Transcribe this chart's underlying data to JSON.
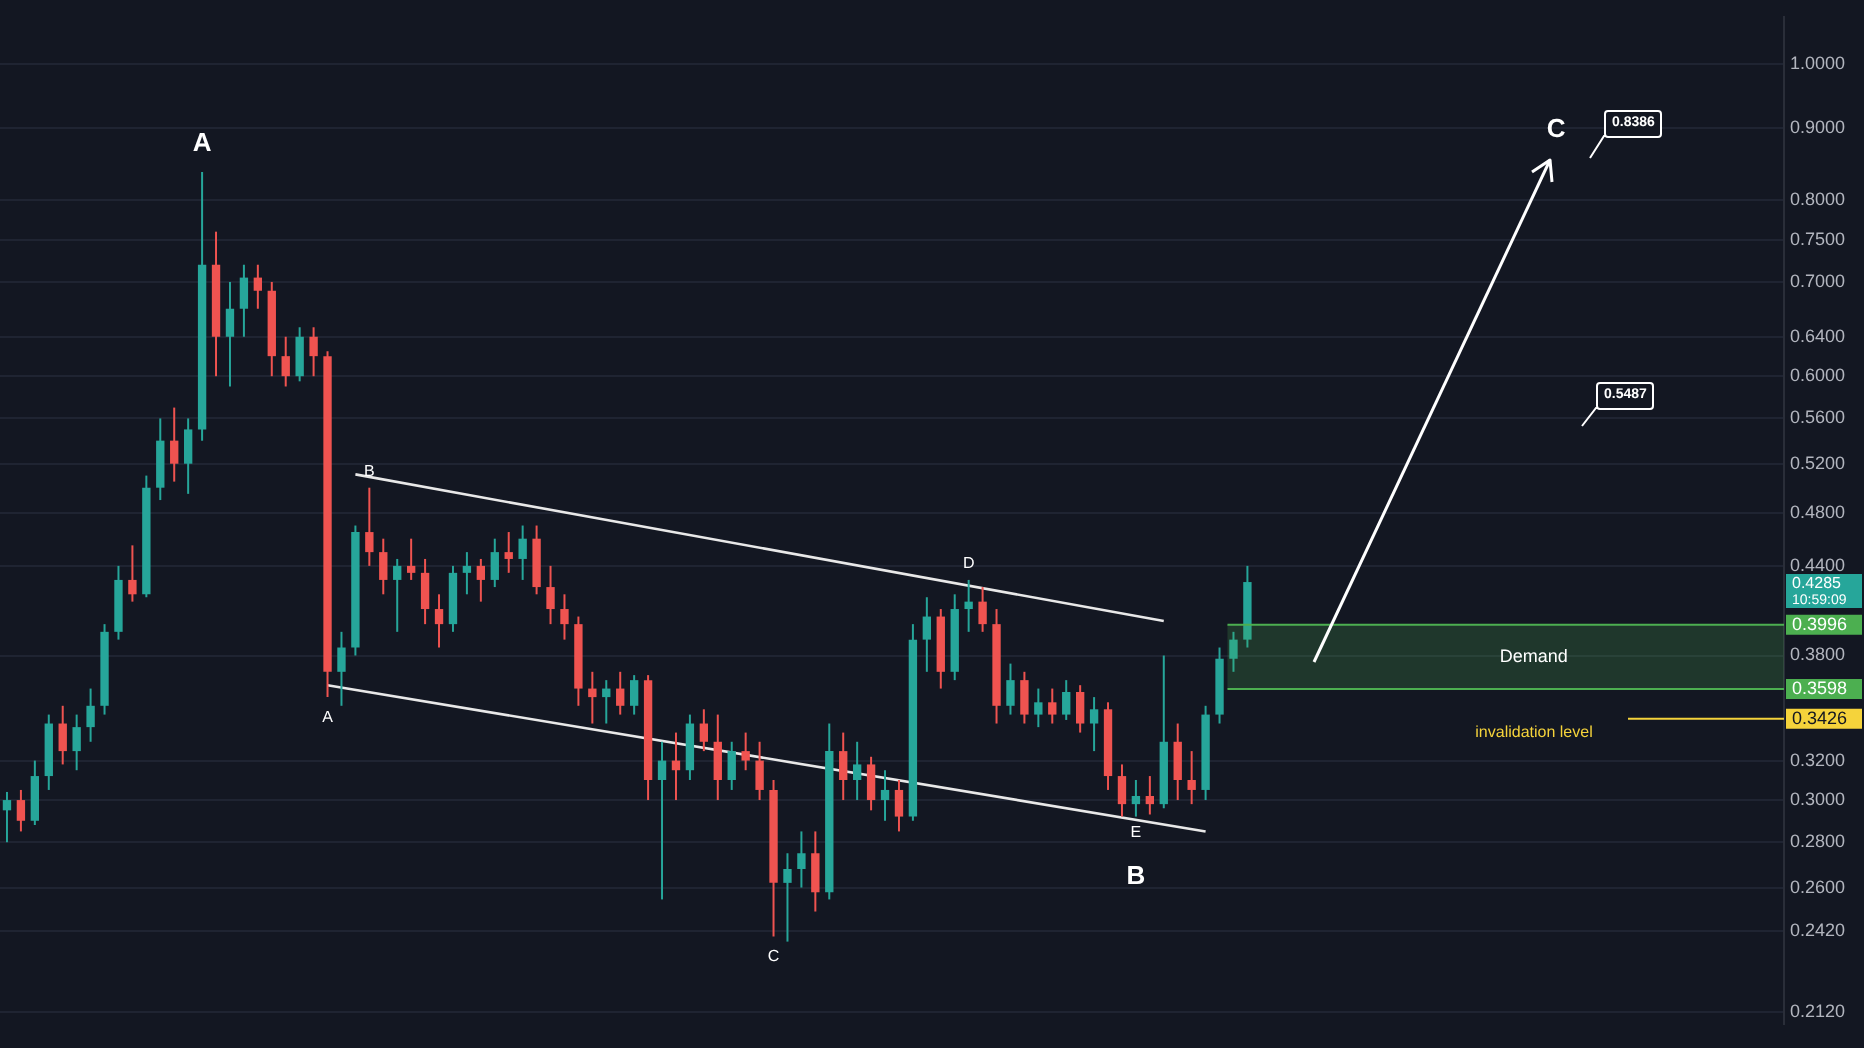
{
  "chart_data": {
    "type": "candlestick",
    "categories": [
      null,
      null,
      null,
      null,
      null,
      null,
      null,
      null,
      null,
      null,
      null,
      null,
      null,
      null,
      null,
      null,
      null,
      null,
      null,
      null,
      null,
      null,
      null,
      null,
      null,
      null,
      null,
      null,
      null,
      null,
      null,
      null,
      null,
      null,
      null,
      null,
      null,
      null,
      null,
      null,
      null,
      null,
      null,
      null,
      null,
      null,
      null,
      null,
      null,
      null,
      null,
      null,
      null,
      null,
      null,
      null,
      null,
      null,
      null,
      null,
      null,
      null,
      null,
      null,
      null,
      null,
      null,
      null,
      null,
      null,
      null,
      null,
      null,
      null,
      null,
      null,
      null,
      null,
      null,
      null,
      null,
      null,
      null,
      null,
      null,
      null,
      null,
      null,
      null,
      null,
      null,
      null,
      null,
      null,
      null,
      null,
      null,
      null,
      null,
      null,
      null,
      null,
      null,
      null,
      null,
      null,
      null,
      null,
      null,
      null,
      null,
      null,
      null,
      null,
      null,
      null,
      null,
      null,
      null,
      null,
      null,
      null,
      null,
      null,
      null,
      null,
      null,
      null
    ],
    "ohlc": [
      [
        0.295,
        0.304,
        0.28,
        0.3
      ],
      [
        0.3,
        0.305,
        0.285,
        0.29
      ],
      [
        0.29,
        0.32,
        0.288,
        0.312
      ],
      [
        0.312,
        0.345,
        0.305,
        0.34
      ],
      [
        0.34,
        0.35,
        0.318,
        0.325
      ],
      [
        0.325,
        0.345,
        0.315,
        0.338
      ],
      [
        0.338,
        0.36,
        0.33,
        0.35
      ],
      [
        0.35,
        0.4,
        0.345,
        0.395
      ],
      [
        0.395,
        0.44,
        0.39,
        0.43
      ],
      [
        0.43,
        0.455,
        0.415,
        0.42
      ],
      [
        0.42,
        0.51,
        0.418,
        0.5
      ],
      [
        0.5,
        0.56,
        0.49,
        0.54
      ],
      [
        0.54,
        0.57,
        0.505,
        0.52
      ],
      [
        0.52,
        0.56,
        0.495,
        0.55
      ],
      [
        0.55,
        0.838,
        0.54,
        0.72
      ],
      [
        0.72,
        0.76,
        0.6,
        0.64
      ],
      [
        0.64,
        0.7,
        0.59,
        0.67
      ],
      [
        0.67,
        0.72,
        0.64,
        0.705
      ],
      [
        0.705,
        0.72,
        0.67,
        0.69
      ],
      [
        0.69,
        0.7,
        0.6,
        0.62
      ],
      [
        0.62,
        0.64,
        0.59,
        0.6
      ],
      [
        0.6,
        0.65,
        0.595,
        0.64
      ],
      [
        0.64,
        0.65,
        0.6,
        0.62
      ],
      [
        0.62,
        0.625,
        0.355,
        0.37
      ],
      [
        0.37,
        0.395,
        0.35,
        0.385
      ],
      [
        0.385,
        0.47,
        0.38,
        0.465
      ],
      [
        0.465,
        0.5,
        0.44,
        0.45
      ],
      [
        0.45,
        0.46,
        0.42,
        0.43
      ],
      [
        0.43,
        0.445,
        0.395,
        0.44
      ],
      [
        0.44,
        0.46,
        0.43,
        0.435
      ],
      [
        0.435,
        0.445,
        0.4,
        0.41
      ],
      [
        0.41,
        0.42,
        0.385,
        0.4
      ],
      [
        0.4,
        0.44,
        0.395,
        0.435
      ],
      [
        0.435,
        0.45,
        0.42,
        0.44
      ],
      [
        0.44,
        0.445,
        0.415,
        0.43
      ],
      [
        0.43,
        0.46,
        0.425,
        0.45
      ],
      [
        0.45,
        0.465,
        0.435,
        0.445
      ],
      [
        0.445,
        0.47,
        0.43,
        0.46
      ],
      [
        0.46,
        0.47,
        0.42,
        0.425
      ],
      [
        0.425,
        0.44,
        0.4,
        0.41
      ],
      [
        0.41,
        0.42,
        0.39,
        0.4
      ],
      [
        0.4,
        0.405,
        0.35,
        0.36
      ],
      [
        0.36,
        0.37,
        0.34,
        0.355
      ],
      [
        0.355,
        0.365,
        0.34,
        0.36
      ],
      [
        0.36,
        0.37,
        0.345,
        0.35
      ],
      [
        0.35,
        0.368,
        0.345,
        0.365
      ],
      [
        0.365,
        0.368,
        0.3,
        0.31
      ],
      [
        0.31,
        0.33,
        0.255,
        0.32
      ],
      [
        0.32,
        0.335,
        0.3,
        0.315
      ],
      [
        0.315,
        0.345,
        0.31,
        0.34
      ],
      [
        0.34,
        0.348,
        0.325,
        0.33
      ],
      [
        0.33,
        0.345,
        0.3,
        0.31
      ],
      [
        0.31,
        0.33,
        0.305,
        0.325
      ],
      [
        0.325,
        0.335,
        0.315,
        0.32
      ],
      [
        0.32,
        0.33,
        0.3,
        0.305
      ],
      [
        0.305,
        0.31,
        0.24,
        0.262
      ],
      [
        0.262,
        0.275,
        0.238,
        0.268
      ],
      [
        0.268,
        0.285,
        0.26,
        0.275
      ],
      [
        0.275,
        0.285,
        0.25,
        0.258
      ],
      [
        0.258,
        0.34,
        0.255,
        0.325
      ],
      [
        0.325,
        0.335,
        0.3,
        0.31
      ],
      [
        0.31,
        0.33,
        0.3,
        0.318
      ],
      [
        0.318,
        0.322,
        0.295,
        0.3
      ],
      [
        0.3,
        0.315,
        0.29,
        0.305
      ],
      [
        0.305,
        0.31,
        0.285,
        0.292
      ],
      [
        0.292,
        0.4,
        0.29,
        0.39
      ],
      [
        0.39,
        0.418,
        0.37,
        0.405
      ],
      [
        0.405,
        0.41,
        0.36,
        0.37
      ],
      [
        0.37,
        0.42,
        0.365,
        0.41
      ],
      [
        0.41,
        0.43,
        0.395,
        0.415
      ],
      [
        0.415,
        0.425,
        0.395,
        0.4
      ],
      [
        0.4,
        0.41,
        0.34,
        0.35
      ],
      [
        0.35,
        0.375,
        0.345,
        0.365
      ],
      [
        0.365,
        0.37,
        0.34,
        0.345
      ],
      [
        0.345,
        0.36,
        0.338,
        0.352
      ],
      [
        0.352,
        0.36,
        0.34,
        0.345
      ],
      [
        0.345,
        0.365,
        0.342,
        0.358
      ],
      [
        0.358,
        0.362,
        0.335,
        0.34
      ],
      [
        0.34,
        0.355,
        0.325,
        0.348
      ],
      [
        0.348,
        0.352,
        0.305,
        0.312
      ],
      [
        0.312,
        0.318,
        0.292,
        0.298
      ],
      [
        0.298,
        0.31,
        0.292,
        0.302
      ],
      [
        0.302,
        0.312,
        0.293,
        0.298
      ],
      [
        0.298,
        0.38,
        0.296,
        0.33
      ],
      [
        0.33,
        0.34,
        0.3,
        0.31
      ],
      [
        0.31,
        0.325,
        0.298,
        0.305
      ],
      [
        0.305,
        0.35,
        0.3,
        0.345
      ],
      [
        0.345,
        0.385,
        0.34,
        0.378
      ],
      [
        0.378,
        0.395,
        0.37,
        0.39
      ],
      [
        0.39,
        0.44,
        0.385,
        0.4285
      ],
      null,
      null,
      null,
      null,
      null,
      null,
      null,
      null,
      null,
      null,
      null,
      null,
      null,
      null,
      null,
      null,
      null,
      null,
      null,
      null,
      null,
      null,
      null,
      null,
      null,
      null,
      null,
      null,
      null,
      null,
      null,
      null,
      null,
      null,
      null,
      null,
      null,
      null
    ],
    "series": [
      {
        "type": "line",
        "color": "#e8e8e8",
        "values": [
          null,
          null,
          null,
          null,
          null,
          null,
          null,
          null,
          null,
          null,
          null,
          null,
          null,
          null,
          null,
          null,
          null,
          null,
          null,
          null,
          null,
          null,
          null,
          null,
          null,
          0.511,
          null,
          null,
          null,
          null,
          null,
          null,
          null,
          null,
          null,
          null,
          null,
          null,
          null,
          null,
          null,
          null,
          null,
          null,
          null,
          null,
          null,
          null,
          null,
          null,
          null,
          null,
          null,
          null,
          null,
          null,
          null,
          null,
          null,
          null,
          null,
          null,
          null,
          null,
          null,
          null,
          null,
          null,
          null,
          null,
          null,
          null,
          null,
          null,
          null,
          null,
          null,
          null,
          null,
          null,
          null,
          null,
          null,
          0.402,
          null,
          null,
          null,
          null,
          null,
          null,
          null,
          null,
          null,
          null,
          null,
          null,
          null,
          null,
          null,
          null,
          null,
          null,
          null,
          null,
          null,
          null,
          null,
          null,
          null,
          null,
          null,
          null,
          null,
          null,
          null,
          null,
          null,
          null,
          null,
          null,
          null,
          null,
          null,
          null,
          null,
          null,
          null,
          null
        ]
      },
      {
        "type": "line",
        "color": "#e8e8e8",
        "values": [
          null,
          null,
          null,
          null,
          null,
          null,
          null,
          null,
          null,
          null,
          null,
          null,
          null,
          null,
          null,
          null,
          null,
          null,
          null,
          null,
          null,
          null,
          null,
          0.362,
          null,
          null,
          null,
          null,
          null,
          null,
          null,
          null,
          null,
          null,
          null,
          null,
          null,
          null,
          null,
          null,
          null,
          null,
          null,
          null,
          null,
          null,
          null,
          null,
          null,
          null,
          null,
          null,
          null,
          null,
          null,
          null,
          null,
          null,
          null,
          null,
          null,
          null,
          null,
          null,
          null,
          null,
          null,
          null,
          null,
          null,
          null,
          null,
          null,
          null,
          null,
          null,
          null,
          null,
          null,
          null,
          null,
          null,
          null,
          null,
          null,
          null,
          0.285,
          null,
          null,
          null,
          null,
          null,
          null,
          null,
          null,
          null,
          null,
          null,
          null,
          null,
          null,
          null,
          null,
          null,
          null,
          null,
          null,
          null,
          null,
          null,
          null,
          null,
          null,
          null,
          null,
          null,
          null,
          null,
          null,
          null,
          null,
          null,
          null,
          null,
          null,
          null,
          null,
          null
        ]
      }
    ],
    "ylim": [
      0.208,
      1.08
    ],
    "yticks": [
      {
        "value": 0.212,
        "label": "0.2120"
      },
      {
        "value": 0.242,
        "label": "0.2420"
      },
      {
        "value": 0.26,
        "label": "0.2600"
      },
      {
        "value": 0.28,
        "label": "0.2800"
      },
      {
        "value": 0.3,
        "label": "0.3000"
      },
      {
        "value": 0.32,
        "label": "0.3200"
      },
      {
        "value": 0.38,
        "label": "0.3800"
      },
      {
        "value": 0.44,
        "label": "0.4400"
      },
      {
        "value": 0.48,
        "label": "0.4800"
      },
      {
        "value": 0.52,
        "label": "0.5200"
      },
      {
        "value": 0.56,
        "label": "0.5600"
      },
      {
        "value": 0.6,
        "label": "0.6000"
      },
      {
        "value": 0.64,
        "label": "0.6400"
      },
      {
        "value": 0.7,
        "label": "0.7000"
      },
      {
        "value": 0.75,
        "label": "0.7500"
      },
      {
        "value": 0.8,
        "label": "0.8000"
      },
      {
        "value": 0.9,
        "label": "0.9000"
      },
      {
        "value": 1,
        "label": "1.0000"
      }
    ],
    "log": "y",
    "grid": "y",
    "tick_labels": "y",
    "bands": [
      {
        "axis": "y",
        "from": 0.3598,
        "to": 0.3996,
        "label": "Demand",
        "color": "#4caf50"
      }
    ],
    "ref_lines": [
      {
        "axis": "y",
        "value": 0.3426,
        "label": "invalidation level",
        "color": "#f5d33b"
      }
    ],
    "annotations": [
      {
        "text": "A",
        "y": 0.838
      },
      {
        "text": "B",
        "y": 0.5
      },
      {
        "text": "A",
        "y": 0.355
      },
      {
        "text": "C",
        "y": 0.24
      },
      {
        "text": "D",
        "y": 0.43
      },
      {
        "text": "E",
        "y": 0.292
      },
      {
        "text": "B",
        "y": 0.292
      },
      "C",
      "0.8386",
      "0.5487",
      "0.4285",
      "10:59:09",
      "0.3996",
      "0.3598",
      "0.3426"
    ]
  }
}
